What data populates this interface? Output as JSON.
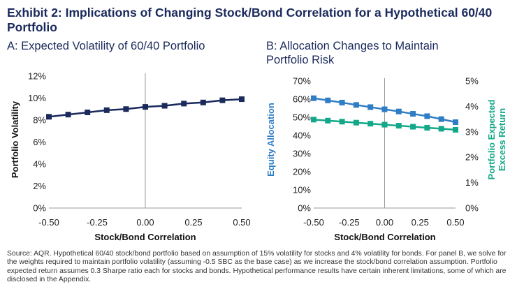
{
  "title": "Exhibit 2: Implications of Changing Stock/Bond Correlation for a Hypothetical 60/40 Portfolio",
  "colors": {
    "navy": "#1b2a5c",
    "blue": "#2f7dc4",
    "teal": "#14a88a",
    "axis": "#999999"
  },
  "footnote": "Source: AQR. Hypothetical 60/40 stock/bond portfolio based on assumption of 15% volatility for stocks and 4% volatility for bonds. For panel B, we solve for the weights required to maintain portfolio volatility (assuming -0.5 SBC as the base case) as we increase the stock/bond correlation assumption. Portfolio expected return assumes 0.3 Sharpe ratio each for stocks and bonds. Hypothetical performance results have certain inherent limitations, some of which are disclosed in the Appendix.",
  "chart_data": [
    {
      "type": "line",
      "panel": "A",
      "title": "A: Expected Volatility of 60/40 Portfolio",
      "xlabel": "Stock/Bond Correlation",
      "ylabel": "Portfolio Volatility",
      "x": [
        -0.5,
        -0.4,
        -0.3,
        -0.2,
        -0.1,
        0.0,
        0.1,
        0.2,
        0.3,
        0.4,
        0.5
      ],
      "xticks": [
        "-0.50",
        "-0.25",
        "0.00",
        "0.25",
        "0.50"
      ],
      "xtick_values": [
        -0.5,
        -0.25,
        0.0,
        0.25,
        0.5
      ],
      "xlim": [
        -0.5,
        0.5
      ],
      "ylim": [
        0,
        12
      ],
      "yticks": [
        "0%",
        "2%",
        "4%",
        "6%",
        "8%",
        "10%",
        "12%"
      ],
      "ytick_values": [
        0,
        2,
        4,
        6,
        8,
        10,
        12
      ],
      "series": [
        {
          "name": "Portfolio Volatility",
          "color": "#1b2a5c",
          "values": [
            8.3,
            8.5,
            8.7,
            8.9,
            9.0,
            9.2,
            9.3,
            9.5,
            9.6,
            9.8,
            9.9
          ]
        }
      ]
    },
    {
      "type": "line",
      "panel": "B",
      "title": "B: Allocation Changes to Maintain Portfolio Risk",
      "xlabel": "Stock/Bond Correlation",
      "ylabel": "Equity Allocation",
      "ylabel_right": "Portfolio Expected Excess Return",
      "x": [
        -0.5,
        -0.4,
        -0.3,
        -0.2,
        -0.1,
        0.0,
        0.1,
        0.2,
        0.3,
        0.4,
        0.5
      ],
      "xticks": [
        "-0.50",
        "-0.25",
        "0.00",
        "0.25",
        "0.50"
      ],
      "xtick_values": [
        -0.5,
        -0.25,
        0.0,
        0.25,
        0.5
      ],
      "xlim": [
        -0.5,
        0.5
      ],
      "ylim": [
        0,
        70
      ],
      "yticks": [
        "0%",
        "10%",
        "20%",
        "30%",
        "40%",
        "50%",
        "60%",
        "70%"
      ],
      "ytick_values": [
        0,
        10,
        20,
        30,
        40,
        50,
        60,
        70
      ],
      "ylim_right": [
        0,
        5
      ],
      "yticks_right": [
        "0%",
        "1%",
        "2%",
        "3%",
        "4%",
        "5%"
      ],
      "ytick_values_right": [
        0,
        1,
        2,
        3,
        4,
        5
      ],
      "series": [
        {
          "name": "Equity Allocation",
          "axis": "left",
          "color": "#2f7dc4",
          "values": [
            60.5,
            59.3,
            58.1,
            56.8,
            55.6,
            54.4,
            53.2,
            51.9,
            50.6,
            49.0,
            47.3
          ]
        },
        {
          "name": "Portfolio Expected Excess Return",
          "axis": "right",
          "color": "#14a88a",
          "values": [
            3.48,
            3.44,
            3.4,
            3.36,
            3.32,
            3.28,
            3.24,
            3.2,
            3.16,
            3.12,
            3.08
          ]
        }
      ]
    }
  ]
}
